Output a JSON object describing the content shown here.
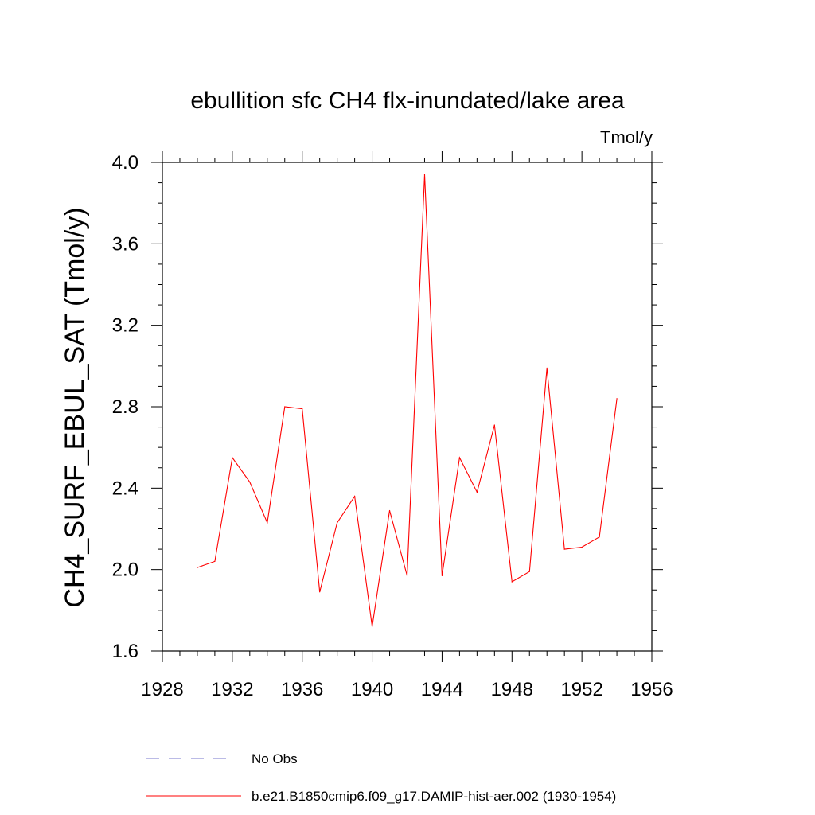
{
  "chart_data": {
    "type": "line",
    "title": "ebullition sfc CH4 flx-inundated/lake area",
    "units": "Tmol/y",
    "ylabel": "CH4_SURF_EBUL_SAT  (Tmol/y)",
    "xlabel": "",
    "xlim": [
      1928,
      1956
    ],
    "ylim": [
      1.6,
      4.0
    ],
    "x_ticks": [
      1928,
      1932,
      1936,
      1940,
      1944,
      1948,
      1952,
      1956
    ],
    "y_ticks": [
      1.6,
      2.0,
      2.4,
      2.8,
      3.2,
      3.6,
      4.0
    ],
    "y_tick_labels": [
      "1.6",
      "2.0",
      "2.4",
      "2.8",
      "3.2",
      "3.6",
      "4.0"
    ],
    "series": [
      {
        "name": "b.e21.B1850cmip6.f09_g17.DAMIP-hist-aer.002 (1930-1954)",
        "color": "#ff0000",
        "x": [
          1930,
          1931,
          1932,
          1933,
          1934,
          1935,
          1936,
          1937,
          1938,
          1939,
          1940,
          1941,
          1942,
          1943,
          1944,
          1945,
          1946,
          1947,
          1948,
          1949,
          1950,
          1951,
          1952,
          1953,
          1954
        ],
        "y": [
          2.01,
          2.04,
          2.55,
          2.43,
          2.23,
          2.8,
          2.79,
          1.89,
          2.23,
          2.36,
          1.72,
          2.29,
          1.97,
          3.94,
          1.97,
          2.55,
          2.38,
          2.71,
          1.94,
          1.99,
          2.99,
          2.1,
          2.11,
          2.16,
          2.84
        ]
      }
    ],
    "legend": [
      {
        "label": "No Obs",
        "color": "#7777cc",
        "style": "dashed"
      },
      {
        "label": "b.e21.B1850cmip6.f09_g17.DAMIP-hist-aer.002 (1930-1954)",
        "color": "#ff0000",
        "style": "solid"
      }
    ],
    "grid": false,
    "legend_position": "bottom"
  }
}
